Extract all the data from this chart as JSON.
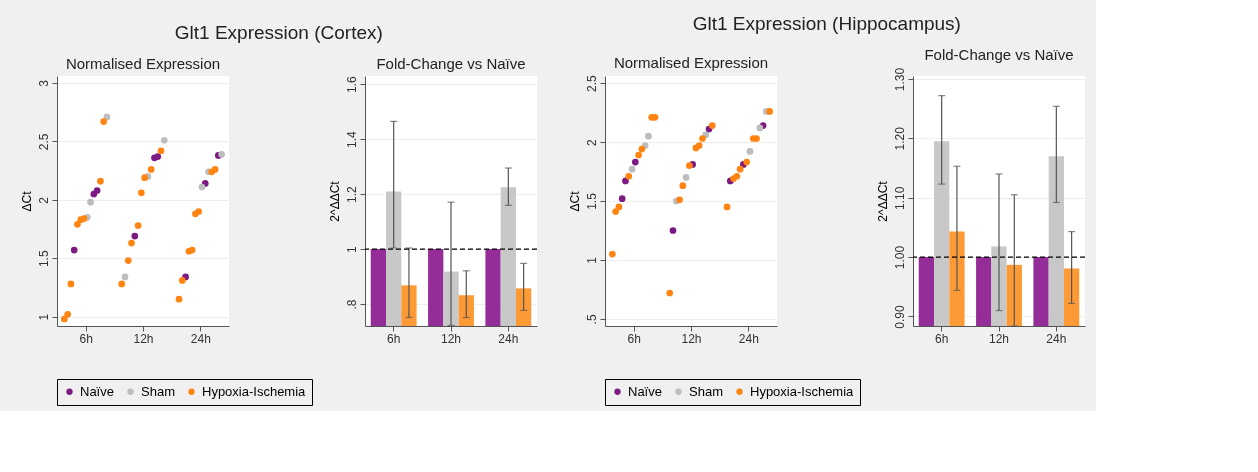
{
  "chart_data": [
    {
      "type": "scatter",
      "title": "Glt1 Expression (Cortex)",
      "subtitle": "Normalised Expression",
      "ylabel": "ΔCt",
      "categories": [
        "6h",
        "12h",
        "24h"
      ],
      "ylim": [
        0.92,
        3.06
      ],
      "yticks": [
        1,
        1.5,
        2,
        2.5,
        3
      ],
      "grid": "y",
      "legend": "bottom",
      "marker": "circle",
      "series": [
        {
          "name": "Naïve",
          "color": "#7b1a80",
          "x": [
            "6h",
            "6h",
            "6h",
            "12h",
            "12h",
            "12h",
            "24h",
            "24h",
            "24h"
          ],
          "values": [
            1.57,
            2.05,
            2.08,
            1.69,
            2.36,
            2.37,
            1.34,
            2.14,
            2.38
          ]
        },
        {
          "name": "Sham",
          "color": "#bdbdbd",
          "x": [
            "6h",
            "6h",
            "6h",
            "12h",
            "12h",
            "12h",
            "24h",
            "24h",
            "24h"
          ],
          "values": [
            1.85,
            1.98,
            2.71,
            1.34,
            2.2,
            2.51,
            2.11,
            2.24,
            2.39
          ]
        },
        {
          "name": "Hypoxia-Ischemia",
          "color": "#ff8412",
          "x": [
            "6h",
            "6h",
            "6h",
            "6h",
            "6h",
            "6h",
            "6h",
            "6h",
            "12h",
            "12h",
            "12h",
            "12h",
            "12h",
            "12h",
            "12h",
            "12h",
            "24h",
            "24h",
            "24h",
            "24h",
            "24h",
            "24h",
            "24h",
            "24h"
          ],
          "values": [
            0.98,
            1.02,
            1.28,
            1.79,
            1.83,
            1.84,
            2.16,
            2.67,
            1.28,
            1.48,
            1.63,
            1.78,
            2.06,
            2.19,
            2.26,
            2.42,
            1.15,
            1.31,
            1.56,
            1.57,
            1.88,
            1.9,
            2.24,
            2.26
          ]
        }
      ]
    },
    {
      "type": "bar",
      "title": "Fold-Change vs Naïve",
      "ylabel": "2^ΔΔCt",
      "categories": [
        "6h",
        "12h",
        "24h"
      ],
      "ylim": [
        0.72,
        1.63
      ],
      "yticks": [
        {
          "value": 0.8,
          "label": ".8"
        },
        1,
        1.2,
        1.4,
        1.6
      ],
      "grid": "y",
      "ref_lines": [
        {
          "axis": "y",
          "value": 1,
          "color": "#000000",
          "line_style": "dashed"
        }
      ],
      "series": [
        {
          "color": "#952d98",
          "values": [
            1,
            1,
            1
          ]
        },
        {
          "color": "#c8c8c8",
          "values": [
            1.21,
            0.918,
            1.225
          ],
          "errors": [
            [
              1.004,
              1.465
            ],
            [
              0.722,
              1.171
            ],
            [
              1.159,
              1.295
            ]
          ]
        },
        {
          "color": "#fd9a35",
          "values": [
            0.868,
            0.832,
            0.857
          ],
          "errors": [
            [
              0.751,
              1.004
            ],
            [
              0.751,
              0.921
            ],
            [
              0.777,
              0.948
            ]
          ]
        }
      ]
    },
    {
      "type": "scatter",
      "title": "Glt1 Expression (Hippocampus)",
      "subtitle": "Normalised Expression",
      "ylabel": "ΔCt",
      "categories": [
        "6h",
        "12h",
        "24h"
      ],
      "ylim": [
        0.44,
        2.56
      ],
      "yticks": [
        {
          "value": 0.5,
          "label": ".5"
        },
        1,
        1.5,
        2,
        2.5
      ],
      "grid": "y",
      "legend": "bottom",
      "marker": "circle",
      "series": [
        {
          "name": "Naïve",
          "color": "#7b1a80",
          "x": [
            "6h",
            "6h",
            "6h",
            "12h",
            "12h",
            "12h",
            "24h",
            "24h",
            "24h"
          ],
          "values": [
            1.52,
            1.67,
            1.83,
            1.25,
            1.81,
            2.11,
            1.67,
            1.81,
            2.14
          ]
        },
        {
          "name": "Sham",
          "color": "#bdbdbd",
          "x": [
            "6h",
            "6h",
            "6h",
            "12h",
            "12h",
            "12h",
            "24h",
            "24h",
            "24h"
          ],
          "values": [
            1.77,
            1.97,
            2.05,
            1.5,
            1.7,
            2.06,
            1.92,
            2.12,
            2.26
          ]
        },
        {
          "name": "Hypoxia-Ischemia",
          "color": "#ff8412",
          "x": [
            "6h",
            "6h",
            "6h",
            "6h",
            "6h",
            "6h",
            "6h",
            "6h",
            "12h",
            "12h",
            "12h",
            "12h",
            "12h",
            "12h",
            "12h",
            "12h",
            "24h",
            "24h",
            "24h",
            "24h",
            "24h",
            "24h",
            "24h",
            "24h"
          ],
          "values": [
            1.05,
            1.41,
            1.45,
            1.71,
            1.89,
            1.94,
            2.21,
            2.21,
            0.72,
            1.51,
            1.63,
            1.8,
            1.95,
            1.97,
            2.03,
            2.14,
            1.45,
            1.69,
            1.71,
            1.77,
            1.83,
            2.03,
            2.03,
            2.26
          ]
        }
      ]
    },
    {
      "type": "bar",
      "title": "Fold-Change vs Naïve",
      "ylabel": "2^ΔΔCt",
      "categories": [
        "6h",
        "12h",
        "24h"
      ],
      "ylim": [
        0.884,
        1.305
      ],
      "yticks": [
        {
          "value": 0.9,
          "label": "0.90"
        },
        {
          "value": 1.0,
          "label": "1.00"
        },
        {
          "value": 1.1,
          "label": "1.10"
        },
        {
          "value": 1.2,
          "label": "1.20"
        },
        {
          "value": 1.3,
          "label": "1.30"
        }
      ],
      "grid": "y",
      "ref_lines": [
        {
          "axis": "y",
          "value": 1,
          "color": "#000000",
          "line_style": "dashed"
        }
      ],
      "series": [
        {
          "color": "#952d98",
          "values": [
            1,
            1,
            1
          ]
        },
        {
          "color": "#c8c8c8",
          "values": [
            1.195,
            1.018,
            1.17
          ],
          "errors": [
            [
              1.123,
              1.272
            ],
            [
              0.91,
              1.14
            ],
            [
              1.092,
              1.254
            ]
          ]
        },
        {
          "color": "#fd9a35",
          "values": [
            1.043,
            0.987,
            0.981
          ],
          "errors": [
            [
              0.944,
              1.153
            ],
            [
              0.884,
              1.105
            ],
            [
              0.922,
              1.043
            ]
          ]
        }
      ]
    }
  ]
}
